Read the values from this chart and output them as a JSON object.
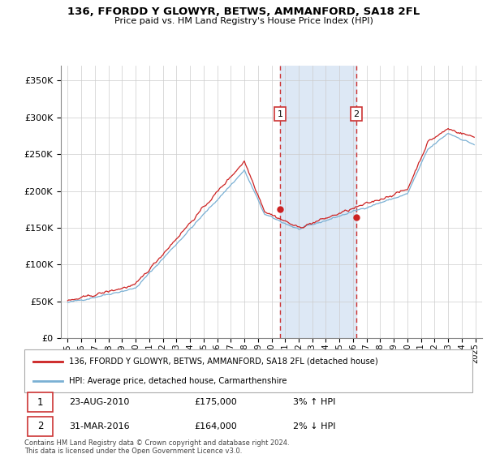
{
  "title": "136, FFORDD Y GLOWYR, BETWS, AMMANFORD, SA18 2FL",
  "subtitle": "Price paid vs. HM Land Registry's House Price Index (HPI)",
  "legend_line1": "136, FFORDD Y GLOWYR, BETWS, AMMANFORD, SA18 2FL (detached house)",
  "legend_line2": "HPI: Average price, detached house, Carmarthenshire",
  "annotation1": {
    "num": "1",
    "date": "23-AUG-2010",
    "price": "£175,000",
    "pct": "3% ↑ HPI"
  },
  "annotation2": {
    "num": "2",
    "date": "31-MAR-2016",
    "price": "£164,000",
    "pct": "2% ↓ HPI"
  },
  "footer": "Contains HM Land Registry data © Crown copyright and database right 2024.\nThis data is licensed under the Open Government Licence v3.0.",
  "hpi_color": "#7ab0d4",
  "price_color": "#cc2222",
  "annot_box_color": "#dde8f5",
  "annot_line_color": "#cc3333",
  "ylim": [
    0,
    370000
  ],
  "yticks": [
    0,
    50000,
    100000,
    150000,
    200000,
    250000,
    300000,
    350000
  ],
  "xlim_start": 1994.5,
  "xlim_end": 2025.5,
  "sale1_x": 2010.64,
  "sale1_y": 175000,
  "sale2_x": 2016.25,
  "sale2_y": 164000,
  "shade_x1": 2010.64,
  "shade_x2": 2016.25
}
